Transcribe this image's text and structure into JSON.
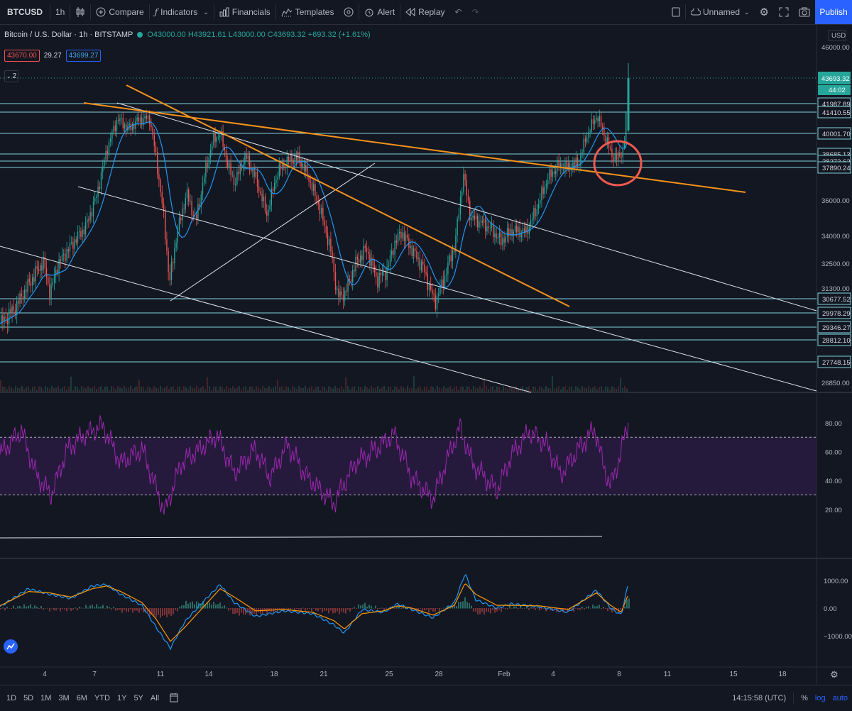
{
  "toolbar": {
    "symbol": "BTCUSD",
    "interval": "1h",
    "compare": "Compare",
    "indicators": "Indicators",
    "financials": "Financials",
    "templates": "Templates",
    "alert": "Alert",
    "replay": "Replay",
    "layout_name": "Unnamed",
    "publish": "Publish"
  },
  "legend": {
    "title": "Bitcoin / U.S. Dollar · 1h · BITSTAMP",
    "ohlc": "O43000.00 H43921.61 L43000.00 C43693.32 +693.32 (+1.61%)",
    "badge_sell": "43670.00",
    "badge_spread": "29.27",
    "badge_buy": "43699.27",
    "collapse": "2"
  },
  "price_axis": {
    "currency": "USD",
    "ticks": [
      "46000.00",
      "36000.00",
      "34000.00",
      "32500.00",
      "31300.00",
      "26850.00"
    ],
    "level_labels": [
      "41987.89",
      "41410.55",
      "40001.70",
      "38685.13",
      "38273.62",
      "37890.24",
      "30677.52",
      "29978.29",
      "29346.27",
      "28812.10",
      "27748.15"
    ],
    "last_price": "43693.32",
    "countdown": "44:02"
  },
  "rsi_axis": {
    "ticks": [
      "80.00",
      "60.00",
      "40.00",
      "20.00"
    ]
  },
  "macd_axis": {
    "ticks": [
      "1000.00",
      "0.00",
      "−1000.00"
    ]
  },
  "time_axis": {
    "labels": [
      "4",
      "7",
      "11",
      "14",
      "18",
      "21",
      "25",
      "28",
      "Feb",
      "4",
      "8",
      "11",
      "15",
      "18"
    ]
  },
  "bottom": {
    "ranges": [
      "1D",
      "5D",
      "1M",
      "3M",
      "6M",
      "YTD",
      "1Y",
      "5Y",
      "All"
    ],
    "clock": "14:15:58 (UTC)",
    "percent": "%",
    "log": "log",
    "auto": "auto"
  },
  "colors": {
    "background": "#131722",
    "up": "#26a69a",
    "down": "#ef5350",
    "level_line": "#7fd3dc",
    "trend_orange": "#f7931a",
    "ma_blue": "#2196f3",
    "rsi": "#9c27b0",
    "accent": "#2962ff"
  },
  "chart_data": {
    "type": "candlestick",
    "symbol": "BTCUSD",
    "exchange": "BITSTAMP",
    "interval": "1h",
    "ohlc_last": {
      "open": 43000.0,
      "high": 43921.61,
      "low": 43000.0,
      "close": 43693.32,
      "change": 693.32,
      "change_pct": 1.61
    },
    "ylim": [
      26600,
      46500
    ],
    "horizontal_levels": [
      41987.89,
      41410.55,
      40001.7,
      38685.13,
      38273.62,
      37890.24,
      30677.52,
      29978.29,
      29346.27,
      28812.1,
      27748.15
    ],
    "close_path": [
      [
        0,
        29500
      ],
      [
        20,
        30200
      ],
      [
        40,
        31500
      ],
      [
        60,
        32600
      ],
      [
        70,
        31000
      ],
      [
        80,
        32400
      ],
      [
        100,
        33500
      ],
      [
        120,
        34500
      ],
      [
        135,
        36200
      ],
      [
        150,
        39000
      ],
      [
        165,
        41000
      ],
      [
        180,
        40300
      ],
      [
        195,
        40900
      ],
      [
        210,
        41000
      ],
      [
        220,
        38200
      ],
      [
        230,
        35000
      ],
      [
        238,
        31500
      ],
      [
        248,
        34000
      ],
      [
        262,
        36400
      ],
      [
        275,
        34800
      ],
      [
        290,
        38000
      ],
      [
        300,
        39600
      ],
      [
        310,
        40000
      ],
      [
        320,
        38000
      ],
      [
        330,
        37000
      ],
      [
        345,
        38600
      ],
      [
        360,
        37200
      ],
      [
        375,
        35200
      ],
      [
        390,
        37600
      ],
      [
        405,
        38300
      ],
      [
        420,
        38500
      ],
      [
        435,
        37200
      ],
      [
        450,
        35500
      ],
      [
        465,
        33200
      ],
      [
        475,
        30800
      ],
      [
        485,
        31000
      ],
      [
        500,
        32500
      ],
      [
        515,
        33300
      ],
      [
        530,
        31700
      ],
      [
        545,
        32200
      ],
      [
        555,
        33600
      ],
      [
        565,
        34200
      ],
      [
        580,
        33200
      ],
      [
        595,
        32300
      ],
      [
        612,
        30500
      ],
      [
        625,
        31800
      ],
      [
        640,
        33500
      ],
      [
        652,
        37500
      ],
      [
        662,
        35000
      ],
      [
        675,
        34800
      ],
      [
        690,
        34400
      ],
      [
        705,
        33700
      ],
      [
        720,
        34300
      ],
      [
        740,
        34200
      ],
      [
        755,
        35500
      ],
      [
        770,
        37200
      ],
      [
        785,
        38000
      ],
      [
        800,
        37900
      ],
      [
        815,
        38200
      ],
      [
        825,
        39800
      ],
      [
        840,
        41200
      ],
      [
        850,
        40000
      ],
      [
        860,
        38700
      ],
      [
        868,
        38400
      ],
      [
        878,
        39000
      ],
      [
        885,
        43693
      ]
    ],
    "rsi": {
      "overbought": 70,
      "oversold": 30,
      "ylim": [
        15,
        90
      ],
      "values": [
        [
          0,
          58
        ],
        [
          30,
          75
        ],
        [
          50,
          45
        ],
        [
          72,
          30
        ],
        [
          95,
          62
        ],
        [
          120,
          72
        ],
        [
          145,
          78
        ],
        [
          170,
          52
        ],
        [
          200,
          62
        ],
        [
          232,
          18
        ],
        [
          255,
          52
        ],
        [
          285,
          63
        ],
        [
          305,
          72
        ],
        [
          330,
          45
        ],
        [
          360,
          62
        ],
        [
          380,
          42
        ],
        [
          405,
          65
        ],
        [
          430,
          44
        ],
        [
          470,
          24
        ],
        [
          500,
          52
        ],
        [
          530,
          62
        ],
        [
          555,
          72
        ],
        [
          580,
          42
        ],
        [
          610,
          27
        ],
        [
          630,
          55
        ],
        [
          648,
          77
        ],
        [
          665,
          52
        ],
        [
          700,
          33
        ],
        [
          720,
          57
        ],
        [
          745,
          74
        ],
        [
          770,
          65
        ],
        [
          790,
          44
        ],
        [
          815,
          62
        ],
        [
          838,
          76
        ],
        [
          850,
          50
        ],
        [
          860,
          36
        ],
        [
          872,
          55
        ],
        [
          885,
          81
        ]
      ]
    },
    "macd": {
      "ylim": [
        -1600,
        1600
      ],
      "macd_line": [
        [
          0,
          50
        ],
        [
          40,
          700
        ],
        [
          70,
          500
        ],
        [
          100,
          350
        ],
        [
          130,
          800
        ],
        [
          150,
          850
        ],
        [
          170,
          500
        ],
        [
          200,
          100
        ],
        [
          220,
          -700
        ],
        [
          240,
          -1450
        ],
        [
          260,
          -500
        ],
        [
          285,
          200
        ],
        [
          310,
          850
        ],
        [
          330,
          200
        ],
        [
          360,
          -300
        ],
        [
          400,
          -100
        ],
        [
          440,
          -200
        ],
        [
          470,
          -600
        ],
        [
          485,
          -900
        ],
        [
          510,
          -50
        ],
        [
          540,
          -150
        ],
        [
          560,
          150
        ],
        [
          580,
          -50
        ],
        [
          610,
          -350
        ],
        [
          640,
          200
        ],
        [
          655,
          1250
        ],
        [
          670,
          300
        ],
        [
          700,
          0
        ],
        [
          720,
          150
        ],
        [
          760,
          50
        ],
        [
          800,
          -150
        ],
        [
          840,
          650
        ],
        [
          860,
          0
        ],
        [
          875,
          -250
        ],
        [
          885,
          900
        ]
      ],
      "signal_line": [
        [
          0,
          80
        ],
        [
          40,
          600
        ],
        [
          70,
          550
        ],
        [
          100,
          400
        ],
        [
          130,
          700
        ],
        [
          150,
          800
        ],
        [
          170,
          600
        ],
        [
          200,
          200
        ],
        [
          220,
          -400
        ],
        [
          240,
          -1200
        ],
        [
          260,
          -700
        ],
        [
          285,
          0
        ],
        [
          310,
          700
        ],
        [
          330,
          400
        ],
        [
          360,
          -100
        ],
        [
          400,
          -50
        ],
        [
          440,
          -150
        ],
        [
          470,
          -450
        ],
        [
          485,
          -750
        ],
        [
          510,
          -200
        ],
        [
          540,
          -100
        ],
        [
          560,
          80
        ],
        [
          580,
          0
        ],
        [
          610,
          -250
        ],
        [
          640,
          100
        ],
        [
          655,
          900
        ],
        [
          670,
          500
        ],
        [
          700,
          100
        ],
        [
          720,
          100
        ],
        [
          760,
          80
        ],
        [
          800,
          -50
        ],
        [
          840,
          550
        ],
        [
          860,
          100
        ],
        [
          875,
          -150
        ],
        [
          885,
          500
        ]
      ]
    }
  }
}
